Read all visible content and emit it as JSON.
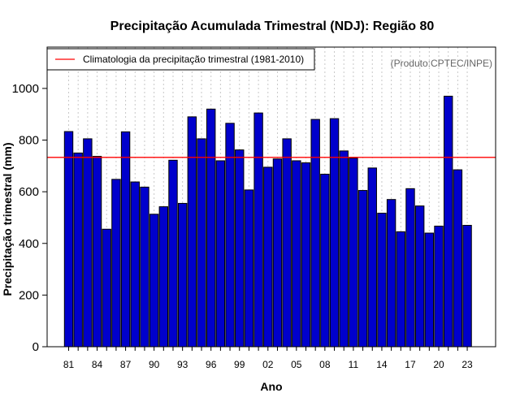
{
  "chart_data": {
    "type": "bar",
    "title": "Precipitação Acumulada Trimestral (NDJ): Região 80",
    "xlabel": "Ano",
    "ylabel": "Precipitação trimestral (mm)",
    "ylim": [
      0,
      1160
    ],
    "yticks": [
      0,
      200,
      400,
      600,
      800,
      1000
    ],
    "xtick_labels": [
      "81",
      "84",
      "87",
      "90",
      "93",
      "96",
      "99",
      "02",
      "05",
      "08",
      "11",
      "14",
      "17",
      "20",
      "23"
    ],
    "categories": [
      "1981",
      "1982",
      "1983",
      "1984",
      "1985",
      "1986",
      "1987",
      "1988",
      "1989",
      "1990",
      "1991",
      "1992",
      "1993",
      "1994",
      "1995",
      "1996",
      "1997",
      "1998",
      "1999",
      "2000",
      "2001",
      "2002",
      "2003",
      "2004",
      "2005",
      "2006",
      "2007",
      "2008",
      "2009",
      "2010",
      "2011",
      "2012",
      "2013",
      "2014",
      "2015",
      "2016",
      "2017",
      "2018",
      "2019",
      "2020",
      "2021",
      "2022",
      "2023"
    ],
    "values": [
      833,
      750,
      805,
      737,
      455,
      648,
      832,
      638,
      618,
      513,
      542,
      722,
      555,
      890,
      805,
      920,
      720,
      865,
      762,
      607,
      905,
      695,
      727,
      805,
      720,
      712,
      880,
      668,
      883,
      758,
      730,
      605,
      692,
      517,
      570,
      445,
      612,
      545,
      440,
      467,
      970,
      685,
      470
    ],
    "climatology": 733,
    "legend": {
      "label": "Climatologia da precipitação trimestral (1981-2010)",
      "position": "top-left"
    },
    "credit": "(Produto:CPTEC/INPE)",
    "colors": {
      "bar": "#0000cc",
      "bar_border": "#000000",
      "climatology_line": "#ff0000",
      "grid": "#c8c8c8",
      "credit": "#666666"
    }
  }
}
